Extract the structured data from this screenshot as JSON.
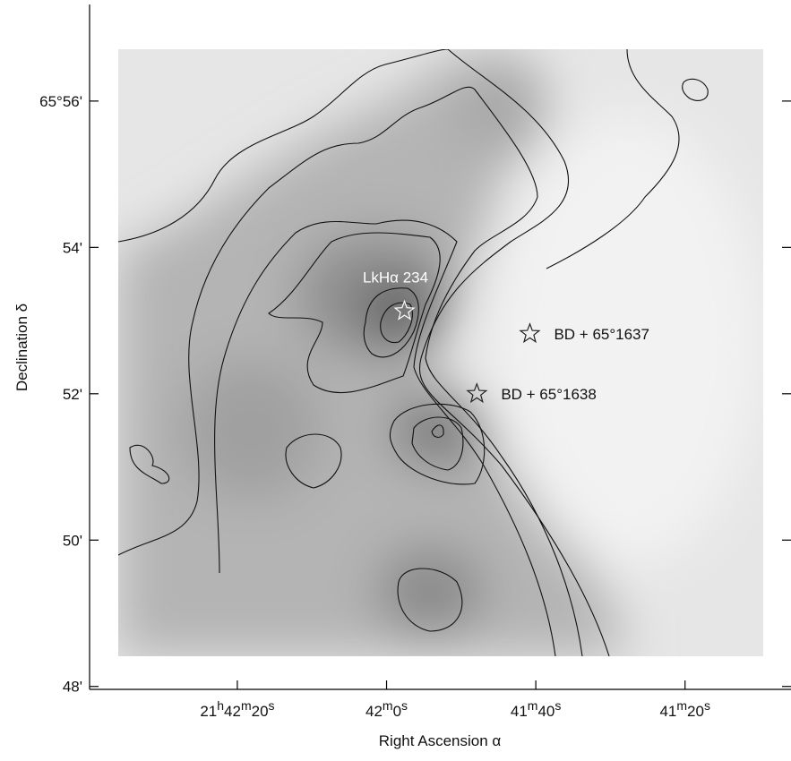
{
  "chart_data": {
    "type": "map",
    "xlabel": "Right Ascension  α",
    "ylabel": "Declination  δ",
    "xlim": [
      2559.8,
      2465.8
    ],
    "ylim": [
      47.96,
      57.32
    ],
    "xticks": [
      {
        "value": 2540,
        "label": "21h42m20s"
      },
      {
        "value": 2520,
        "label": "42m0s"
      },
      {
        "value": 2500,
        "label": "41m40s"
      },
      {
        "value": 2480,
        "label": "41m20s"
      }
    ],
    "yticks": [
      {
        "value": 56,
        "label": "65°56'"
      },
      {
        "value": 54,
        "label": "54'"
      },
      {
        "value": 52,
        "label": "52'"
      },
      {
        "value": 50,
        "label": "50'"
      },
      {
        "value": 48,
        "label": "48'"
      }
    ],
    "stars": [
      {
        "name": "LkHα 234",
        "x": 2517.6,
        "y": 53.13,
        "label_side": "above"
      },
      {
        "name": "BD + 65°1637",
        "x": 2500.8,
        "y": 52.82,
        "label_side": "right"
      },
      {
        "name": "BD + 65°1638",
        "x": 2507.9,
        "y": 52.0,
        "label_side": "right"
      }
    ]
  }
}
